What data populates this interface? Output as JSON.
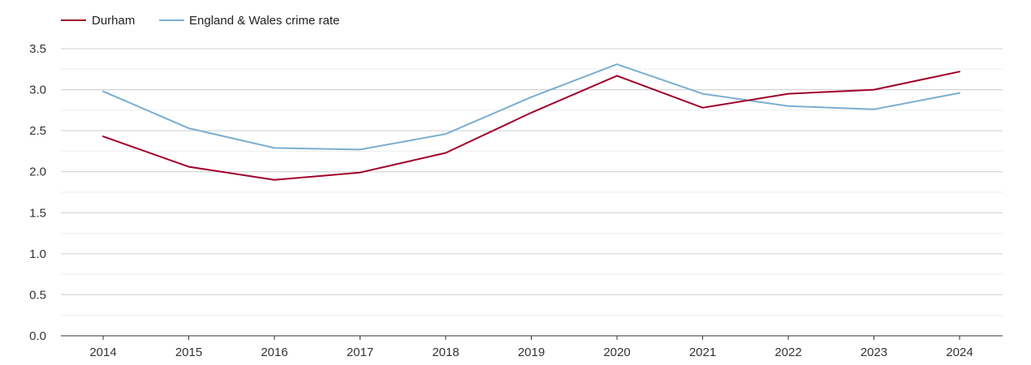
{
  "chart_data": {
    "type": "line",
    "title": "",
    "xlabel": "",
    "ylabel": "",
    "x": [
      "2014",
      "2015",
      "2016",
      "2017",
      "2018",
      "2019",
      "2020",
      "2021",
      "2022",
      "2023",
      "2024"
    ],
    "ylim": [
      0,
      3.5
    ],
    "yticks": [
      "0.0",
      "0.5",
      "1.0",
      "1.5",
      "2.0",
      "2.5",
      "3.0",
      "3.5"
    ],
    "grid": true,
    "legend_position": "top-left",
    "series": [
      {
        "name": "Durham",
        "color": "#a0002a",
        "values": [
          2.43,
          2.06,
          1.9,
          1.99,
          2.23,
          2.72,
          3.17,
          2.78,
          2.95,
          3.0,
          3.22
        ]
      },
      {
        "name": "England & Wales crime rate",
        "color": "#7aaed0",
        "values": [
          2.98,
          2.53,
          2.29,
          2.27,
          2.46,
          2.91,
          3.31,
          2.95,
          2.8,
          2.76,
          2.96
        ]
      }
    ]
  }
}
